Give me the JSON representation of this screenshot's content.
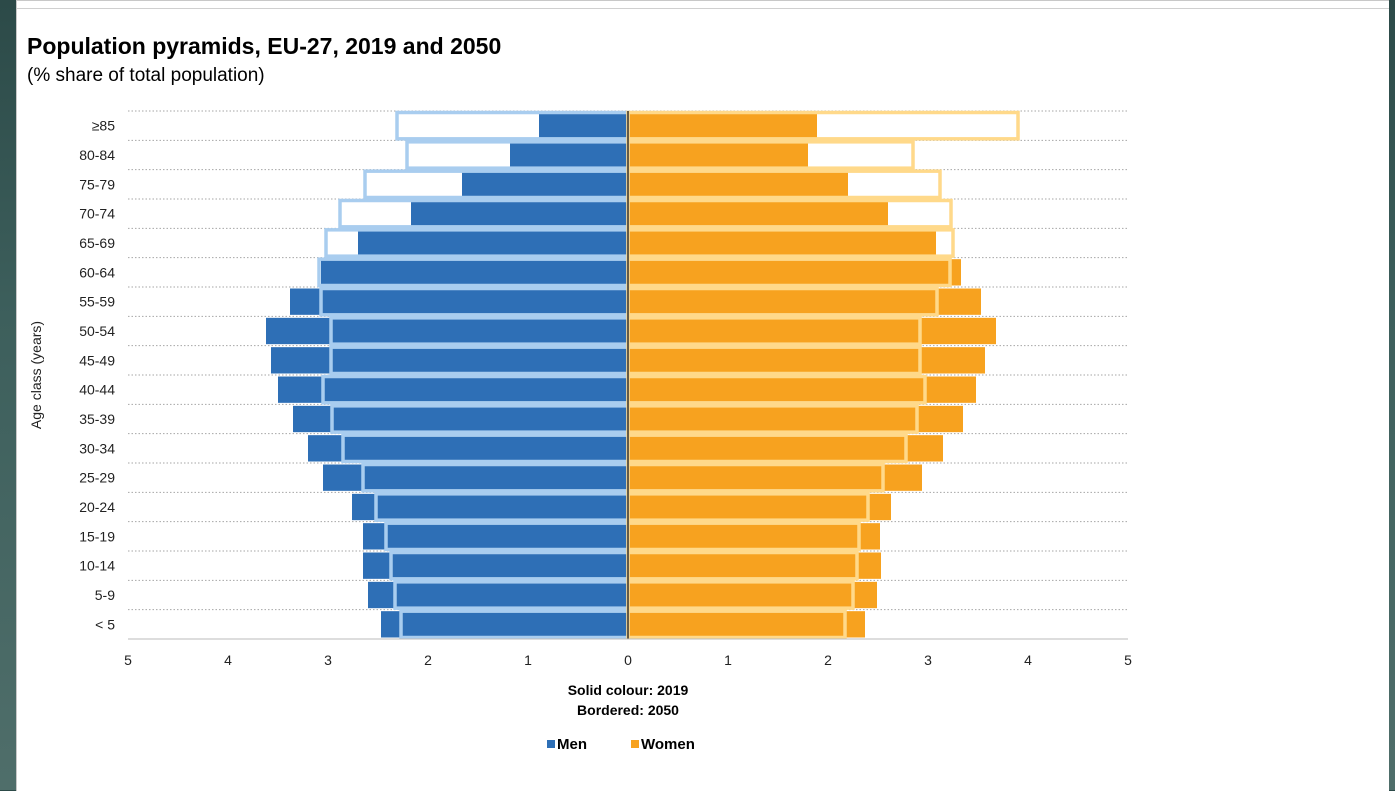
{
  "chart_data": {
    "type": "bar",
    "orientation": "horizontal-pyramid",
    "title": "Population pyramids, EU-27, 2019 and 2050",
    "subtitle": "(% share of total population)",
    "ylabel": "Age class (years)",
    "categories": [
      "< 5",
      "5-9",
      "10-14",
      "15-19",
      "20-24",
      "25-29",
      "30-34",
      "35-39",
      "40-44",
      "45-49",
      "50-54",
      "55-59",
      "60-64",
      "65-69",
      "70-74",
      "75-79",
      "80-84",
      "≥85"
    ],
    "xlim": [
      -5,
      5
    ],
    "x_tick_labels": [
      "5",
      "4",
      "3",
      "2",
      "1",
      "0",
      "1",
      "2",
      "3",
      "4",
      "5"
    ],
    "x_tick_values": [
      -5,
      -4,
      -3,
      -2,
      -1,
      0,
      1,
      2,
      3,
      4,
      5
    ],
    "grid": "horizontal dotted",
    "notes": [
      "Solid colour: 2019",
      "Bordered: 2050"
    ],
    "legend": {
      "placement": "bottom-center",
      "items": [
        {
          "label": "Men",
          "color": "#2e6fb6"
        },
        {
          "label": "Women",
          "color": "#f7a21f"
        }
      ]
    },
    "series": [
      {
        "name": "Men",
        "year": "2019",
        "style": "solid",
        "color": "#2e6fb6",
        "values": [
          2.47,
          2.6,
          2.65,
          2.65,
          2.76,
          3.05,
          3.2,
          3.35,
          3.5,
          3.57,
          3.62,
          3.38,
          3.07,
          2.7,
          2.17,
          1.66,
          1.18,
          0.89
        ]
      },
      {
        "name": "Men",
        "year": "2050",
        "style": "bordered",
        "color": "#a9cdef",
        "values": [
          2.27,
          2.33,
          2.37,
          2.42,
          2.52,
          2.65,
          2.85,
          2.96,
          3.05,
          2.97,
          2.97,
          3.07,
          3.09,
          3.02,
          2.88,
          2.63,
          2.21,
          2.31
        ]
      },
      {
        "name": "Women",
        "year": "2019",
        "style": "solid",
        "color": "#f7a21f",
        "values": [
          2.37,
          2.49,
          2.53,
          2.52,
          2.63,
          2.94,
          3.15,
          3.35,
          3.48,
          3.57,
          3.68,
          3.53,
          3.33,
          3.08,
          2.6,
          2.2,
          1.8,
          1.89
        ]
      },
      {
        "name": "Women",
        "year": "2050",
        "style": "bordered",
        "color": "#ffd98a",
        "values": [
          2.17,
          2.25,
          2.29,
          2.31,
          2.4,
          2.55,
          2.78,
          2.89,
          2.97,
          2.92,
          2.92,
          3.09,
          3.22,
          3.25,
          3.23,
          3.12,
          2.85,
          3.9
        ]
      }
    ]
  }
}
